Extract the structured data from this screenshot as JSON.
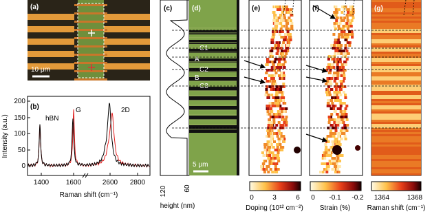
{
  "panels": {
    "a": {
      "label": "(a)",
      "scale_bar": "10 μm"
    },
    "b": {
      "label": "(b)",
      "y_label": "Intensity (a.u.)",
      "x_label": "Raman shift (cm⁻¹)",
      "peaks": [
        "hBN",
        "G",
        "2D"
      ],
      "x_ticks": [
        "1400",
        "1600",
        "2600",
        "2800"
      ],
      "y_ticks": [
        "0",
        "50",
        "100",
        "150",
        "200"
      ]
    },
    "c": {
      "label": "(c)",
      "x_label": "height (nm)",
      "x_ticks": [
        "120",
        "60"
      ]
    },
    "d": {
      "label": "(d)",
      "regions": [
        "C1",
        "A",
        "C2",
        "B",
        "C3"
      ],
      "scale_bar": "5 μm"
    },
    "e": {
      "label": "(e)",
      "colorbar_label": "Doping (10¹² cm⁻²)",
      "colorbar_ticks": [
        "0",
        "3",
        "6"
      ]
    },
    "f": {
      "label": "(f)",
      "colorbar_label": "Strain (%)",
      "colorbar_ticks": [
        "0",
        "-0.1",
        "-0.2"
      ]
    },
    "g": {
      "label": "(g)",
      "colorbar_label": "Raman shift (cm⁻¹)",
      "colorbar_ticks": [
        "1364",
        "1368"
      ]
    }
  }
}
